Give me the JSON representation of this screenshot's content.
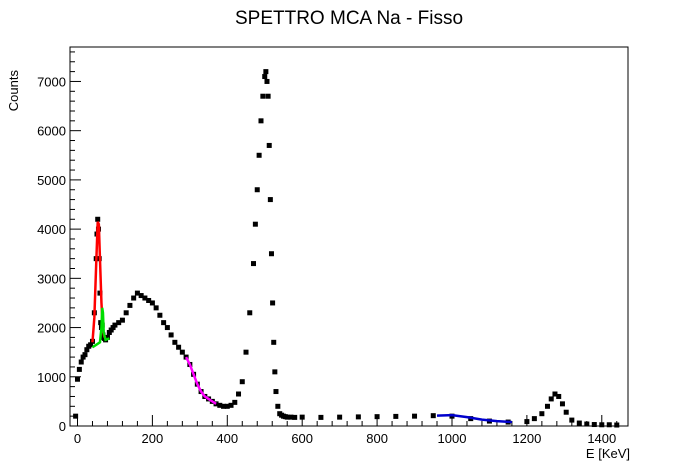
{
  "chart_data": {
    "type": "scatter",
    "title": "SPETTRO MCA Na - Fisso",
    "xlabel": "E [KeV]",
    "ylabel": "Counts",
    "xlim": [
      -20,
      1470
    ],
    "ylim": [
      0,
      7700
    ],
    "x_ticks": [
      0,
      200,
      400,
      600,
      800,
      1000,
      1200,
      1400
    ],
    "y_ticks": [
      0,
      1000,
      2000,
      3000,
      4000,
      5000,
      6000,
      7000
    ],
    "grid": false,
    "legend": "none",
    "colors": {
      "data": "#000000",
      "fit_peak": "#ff0000",
      "fit_background": "#00dd00",
      "fit_compton": "#ff00ff",
      "fit_high": "#0000cc"
    },
    "series": [
      {
        "marker": "square",
        "color": "#000000",
        "x": [
          -5,
          0,
          5,
          10,
          15,
          20,
          25,
          30,
          35,
          40,
          45,
          50,
          52,
          54,
          56,
          58,
          60,
          62,
          64,
          66,
          68,
          70,
          72,
          75,
          80,
          85,
          90,
          95,
          100,
          110,
          120,
          130,
          140,
          150,
          160,
          170,
          180,
          190,
          200,
          210,
          220,
          230,
          240,
          250,
          260,
          270,
          280,
          290,
          300,
          310,
          320,
          330,
          340,
          350,
          360,
          370,
          380,
          390,
          400,
          410,
          420,
          430,
          440,
          450,
          460,
          470,
          475,
          480,
          485,
          490,
          495,
          500,
          503,
          506,
          509,
          512,
          515,
          518,
          521,
          524,
          527,
          530,
          535,
          540,
          545,
          550,
          555,
          560,
          570,
          580,
          600,
          650,
          700,
          750,
          800,
          850,
          900,
          950,
          1000,
          1050,
          1100,
          1150,
          1200,
          1220,
          1240,
          1255,
          1265,
          1275,
          1285,
          1295,
          1305,
          1320,
          1340,
          1360,
          1380,
          1400,
          1420,
          1440
        ],
        "y": [
          200,
          950,
          1150,
          1300,
          1400,
          1450,
          1550,
          1620,
          1650,
          1720,
          2300,
          3400,
          3900,
          4200,
          4000,
          3400,
          2700,
          2100,
          2000,
          2050,
          1850,
          1800,
          1780,
          1750,
          1800,
          1900,
          1950,
          2000,
          2050,
          2100,
          2150,
          2300,
          2450,
          2600,
          2700,
          2650,
          2600,
          2550,
          2500,
          2400,
          2250,
          2100,
          2000,
          1850,
          1700,
          1600,
          1500,
          1400,
          1250,
          1050,
          850,
          700,
          600,
          550,
          500,
          450,
          420,
          400,
          400,
          420,
          480,
          650,
          900,
          1500,
          2300,
          3300,
          4100,
          4800,
          5500,
          6200,
          6700,
          7100,
          7200,
          7000,
          6700,
          5700,
          4600,
          3500,
          2500,
          1700,
          1100,
          700,
          400,
          250,
          220,
          200,
          190,
          180,
          180,
          175,
          180,
          175,
          180,
          185,
          190,
          195,
          200,
          210,
          200,
          150,
          100,
          80,
          90,
          150,
          250,
          400,
          550,
          650,
          600,
          450,
          280,
          120,
          60,
          40,
          30,
          25,
          25,
          20
        ]
      },
      {
        "name": "fit_peak",
        "color": "#ff0000",
        "x": [
          40,
          45,
          50,
          54,
          57,
          60,
          64,
          68,
          72
        ],
        "y": [
          1700,
          2200,
          3300,
          4150,
          4100,
          3400,
          2500,
          1950,
          1800
        ]
      },
      {
        "name": "fit_background",
        "color": "#00dd00",
        "x": [
          40,
          50,
          60,
          64,
          66,
          68,
          70,
          75,
          85
        ],
        "y": [
          1600,
          1650,
          1700,
          2000,
          2400,
          2300,
          1900,
          1750,
          1780
        ]
      },
      {
        "name": "fit_compton",
        "color": "#ff00ff",
        "x": [
          290,
          300,
          310,
          320,
          330,
          340,
          350,
          360,
          370
        ],
        "y": [
          1400,
          1250,
          1050,
          850,
          700,
          600,
          550,
          500,
          450
        ]
      },
      {
        "name": "fit_high",
        "color": "#0000cc",
        "x": [
          960,
          1000,
          1040,
          1080,
          1120,
          1160
        ],
        "y": [
          210,
          220,
          180,
          130,
          100,
          80
        ]
      }
    ]
  }
}
